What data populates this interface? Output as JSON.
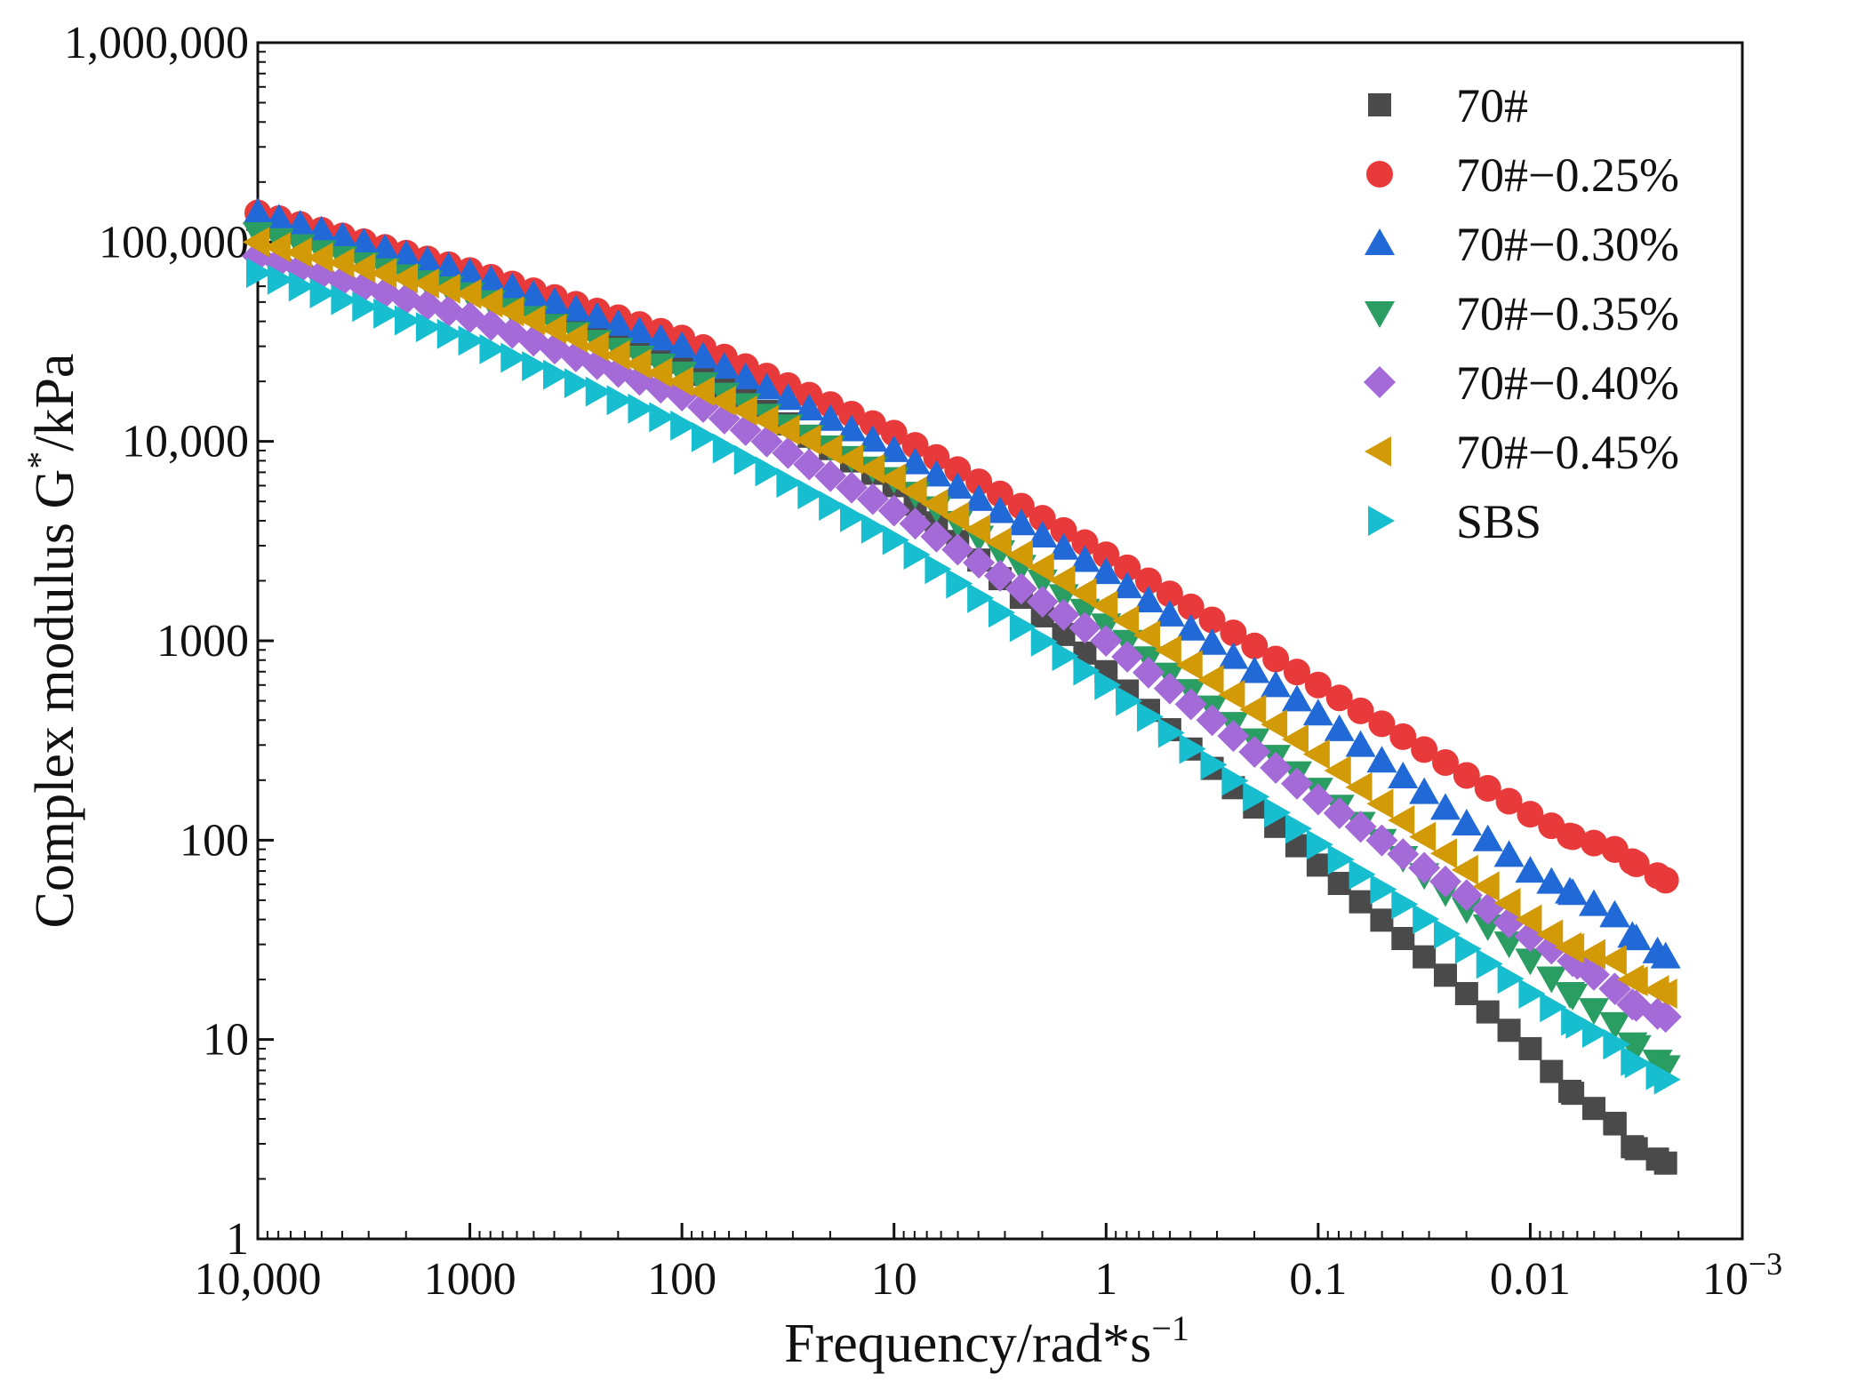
{
  "chart_data": {
    "type": "scatter",
    "title": "",
    "xlabel": "Frequency/rad*s",
    "xlabel_sup": "−1",
    "ylabel": "Complex modulus G",
    "ylabel_sup": "*",
    "ylabel_unit": "/kPa",
    "x_scale": "log",
    "y_scale": "log",
    "x_reversed": true,
    "xlim": [
      10000,
      0.001
    ],
    "ylim": [
      1,
      1000000
    ],
    "x_ticks": [
      {
        "value": 10000,
        "label": "10,000"
      },
      {
        "value": 1000,
        "label": "1000"
      },
      {
        "value": 100,
        "label": "100"
      },
      {
        "value": 10,
        "label": "10"
      },
      {
        "value": 1,
        "label": "1"
      },
      {
        "value": 0.1,
        "label": "0.1"
      },
      {
        "value": 0.01,
        "label": "0.01"
      },
      {
        "value": 0.001,
        "label": "10",
        "sup": "−3"
      }
    ],
    "y_ticks": [
      {
        "value": 1,
        "label": "1"
      },
      {
        "value": 10,
        "label": "10"
      },
      {
        "value": 100,
        "label": "100"
      },
      {
        "value": 1000,
        "label": "1000"
      },
      {
        "value": 10000,
        "label": "10,000"
      },
      {
        "value": 100000,
        "label": "100,000"
      },
      {
        "value": 1000000,
        "label": "1,000,000"
      }
    ],
    "legend_position": "top-right",
    "series": [
      {
        "name": "70#",
        "marker": "square",
        "color": "#4a4a4a",
        "anchors": [
          [
            10000,
            130000
          ],
          [
            1000,
            65000
          ],
          [
            100,
            25000
          ],
          [
            10,
            6000
          ],
          [
            1,
            700
          ],
          [
            0.1,
            75
          ],
          [
            0.01,
            9
          ],
          [
            0.0065,
            5.5
          ],
          [
            0.004,
            3.8
          ],
          [
            0.0033,
            2.9
          ],
          [
            0.0023,
            2.4
          ]
        ]
      },
      {
        "name": "70#−0.25%",
        "marker": "circle",
        "color": "#e83a3a",
        "anchors": [
          [
            10000,
            140000
          ],
          [
            1000,
            72000
          ],
          [
            100,
            33000
          ],
          [
            10,
            11000
          ],
          [
            1,
            2700
          ],
          [
            0.1,
            600
          ],
          [
            0.01,
            135
          ],
          [
            0.0065,
            105
          ],
          [
            0.004,
            90
          ],
          [
            0.0033,
            78
          ],
          [
            0.0023,
            63
          ]
        ]
      },
      {
        "name": "70#−0.30%",
        "marker": "triangle-up",
        "color": "#2269d8",
        "anchors": [
          [
            10000,
            140000
          ],
          [
            1000,
            70000
          ],
          [
            100,
            30000
          ],
          [
            10,
            9000
          ],
          [
            1,
            2200
          ],
          [
            0.1,
            430
          ],
          [
            0.01,
            70
          ],
          [
            0.0065,
            55
          ],
          [
            0.004,
            42
          ],
          [
            0.0033,
            33
          ],
          [
            0.0023,
            26
          ]
        ]
      },
      {
        "name": "70#−0.35%",
        "marker": "triangle-down",
        "color": "#2a9d63",
        "anchors": [
          [
            10000,
            110000
          ],
          [
            1000,
            55000
          ],
          [
            100,
            22000
          ],
          [
            10,
            6500
          ],
          [
            1,
            1200
          ],
          [
            0.1,
            180
          ],
          [
            0.01,
            25
          ],
          [
            0.0065,
            17
          ],
          [
            0.004,
            12
          ],
          [
            0.0033,
            9.5
          ],
          [
            0.0023,
            7.3
          ]
        ]
      },
      {
        "name": "70#−0.40%",
        "marker": "diamond",
        "color": "#a36ad8",
        "anchors": [
          [
            10000,
            85000
          ],
          [
            1000,
            42000
          ],
          [
            100,
            17000
          ],
          [
            10,
            4500
          ],
          [
            1,
            1000
          ],
          [
            0.1,
            160
          ],
          [
            0.01,
            33
          ],
          [
            0.006,
            24
          ],
          [
            0.004,
            18
          ],
          [
            0.0033,
            15
          ],
          [
            0.0023,
            13
          ]
        ]
      },
      {
        "name": "70#−0.45%",
        "marker": "triangle-left",
        "color": "#d19a06",
        "anchors": [
          [
            10000,
            100000
          ],
          [
            1000,
            55000
          ],
          [
            100,
            20000
          ],
          [
            10,
            6500
          ],
          [
            1,
            1500
          ],
          [
            0.1,
            270
          ],
          [
            0.01,
            40
          ],
          [
            0.0065,
            29
          ],
          [
            0.004,
            25
          ],
          [
            0.0033,
            20
          ],
          [
            0.0023,
            17
          ]
        ]
      },
      {
        "name": "SBS",
        "marker": "triangle-right",
        "color": "#17becf",
        "anchors": [
          [
            10000,
            70000
          ],
          [
            1000,
            32000
          ],
          [
            100,
            12000
          ],
          [
            10,
            3200
          ],
          [
            1,
            600
          ],
          [
            0.1,
            95
          ],
          [
            0.01,
            17
          ],
          [
            0.006,
            12
          ],
          [
            0.004,
            9.5
          ],
          [
            0.0033,
            7.8
          ],
          [
            0.0023,
            6.3
          ]
        ]
      }
    ]
  }
}
